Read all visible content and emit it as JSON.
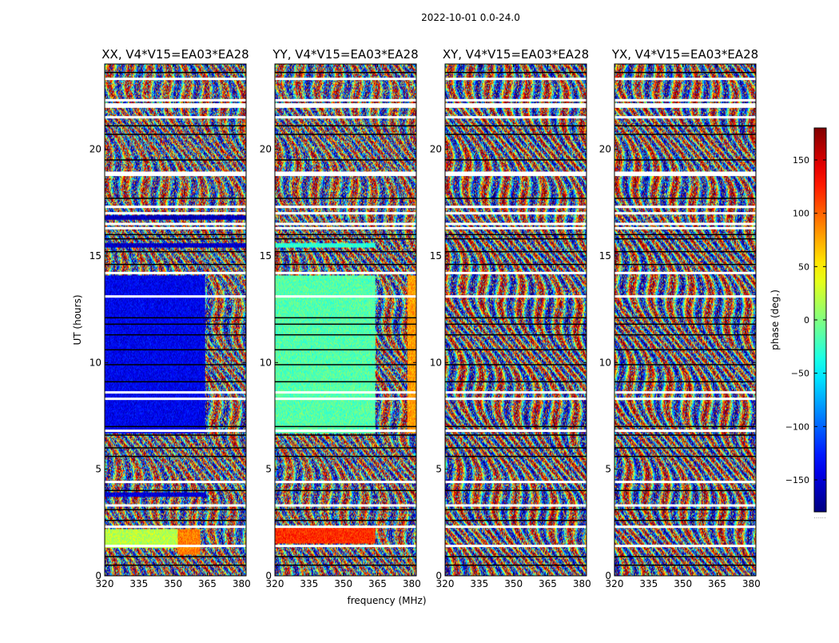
{
  "figure": {
    "suptitle": "2022-10-01 0.0-24.0",
    "xlabel": "frequency (MHz)",
    "ylabel": "UT (hours)",
    "colorbar_label": "phase (deg.)",
    "colorbar_bottom_note": "......"
  },
  "chart_data": {
    "type": "heatmap",
    "colormap": "jet",
    "value_range": [
      -180,
      180
    ],
    "x_range": [
      320,
      382
    ],
    "y_range": [
      0,
      24
    ],
    "xticks": [
      320,
      335,
      350,
      365,
      380
    ],
    "yticks": [
      0,
      5,
      10,
      15,
      20
    ],
    "colorbar_ticks": [
      -150,
      -100,
      -50,
      0,
      50,
      100,
      150
    ],
    "flagged_rows_white_hours": [
      1.4,
      2.3,
      3.3,
      4.4,
      6.8,
      8.3,
      8.6,
      13.1,
      14.2,
      16.3,
      16.5,
      17.0,
      17.3,
      18.8,
      18.9,
      21.5,
      22.0,
      22.1,
      22.3,
      23.3
    ],
    "flagged_rows_black_hours": [
      0.5,
      0.9,
      2.6,
      3.1,
      4.0,
      5.6,
      6.0,
      6.6,
      7.0,
      9.1,
      9.9,
      10.6,
      11.3,
      11.8,
      12.1,
      14.6,
      15.2,
      15.8,
      16.0,
      17.7,
      19.5,
      20.7,
      21.1,
      23.6
    ],
    "panels": [
      {
        "title": "XX, V4*V15=EA03*EA28",
        "polarization": "XX",
        "regions": [
          {
            "x": [
              320,
              364
            ],
            "y": [
              6.7,
              14.1
            ],
            "phase_deg": -140
          },
          {
            "x": [
              320,
              382
            ],
            "y": [
              15.4,
              15.6
            ],
            "phase_deg": -155
          },
          {
            "x": [
              320,
              364
            ],
            "y": [
              3.7,
              3.9
            ],
            "phase_deg": -150
          },
          {
            "x": [
              320,
              352
            ],
            "y": [
              1.3,
              2.2
            ],
            "phase_deg": 20
          },
          {
            "x": [
              352,
              362
            ],
            "y": [
              1.0,
              2.2
            ],
            "phase_deg": 90
          },
          {
            "x": [
              320,
              382
            ],
            "y": [
              16.7,
              16.9
            ],
            "phase_deg": -160
          }
        ]
      },
      {
        "title": "YY, V4*V15=EA03*EA28",
        "polarization": "YY",
        "regions": [
          {
            "x": [
              320,
              364
            ],
            "y": [
              6.7,
              14.1
            ],
            "phase_deg": -15
          },
          {
            "x": [
              320,
              364
            ],
            "y": [
              15.4,
              15.6
            ],
            "phase_deg": -30
          },
          {
            "x": [
              320,
              364
            ],
            "y": [
              1.5,
              2.3
            ],
            "phase_deg": 120
          },
          {
            "x": [
              378,
              382
            ],
            "y": [
              6.7,
              14.1
            ],
            "phase_deg": 80
          }
        ]
      },
      {
        "title": "XY, V4*V15=EA03*EA28",
        "polarization": "XY",
        "regions": []
      },
      {
        "title": "YX, V4*V15=EA03*EA28",
        "polarization": "YX",
        "regions": []
      }
    ]
  }
}
